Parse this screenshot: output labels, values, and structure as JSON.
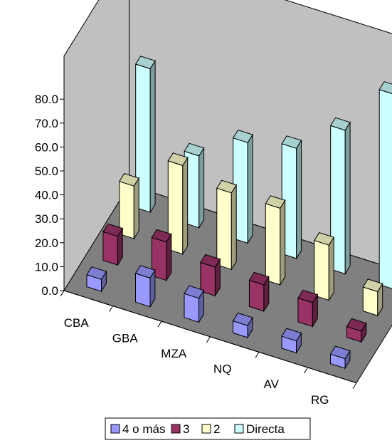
{
  "chart_data": {
    "type": "bar",
    "subtype": "3d-column",
    "categories": [
      "CBA",
      "GBA",
      "MZA",
      "NQ",
      "AV",
      "RG"
    ],
    "series": [
      {
        "name": "4 o más",
        "color": "#9999ff",
        "values": [
          5.0,
          12.0,
          10.0,
          5.0,
          5.0,
          4.0
        ]
      },
      {
        "name": "3",
        "color": "#993366",
        "values": [
          12.0,
          16.0,
          12.0,
          11.0,
          10.0,
          4.5
        ]
      },
      {
        "name": "2",
        "color": "#ffffcc",
        "values": [
          22.0,
          37.0,
          32.0,
          32.0,
          23.0,
          10.0
        ]
      },
      {
        "name": "Directa",
        "color": "#ccffff",
        "values": [
          60.0,
          30.0,
          42.0,
          46.0,
          60.0,
          81.5
        ]
      }
    ],
    "yticks": [
      "80.0",
      "70.0",
      "60.0",
      "50.0",
      "40.0",
      "30.0",
      "20.0",
      "10.0",
      "0.0"
    ],
    "ylim": [
      0,
      80
    ],
    "grid": false,
    "legend": "bottom",
    "wall_color": "#c0c0c0",
    "floor_color": "#808080"
  }
}
